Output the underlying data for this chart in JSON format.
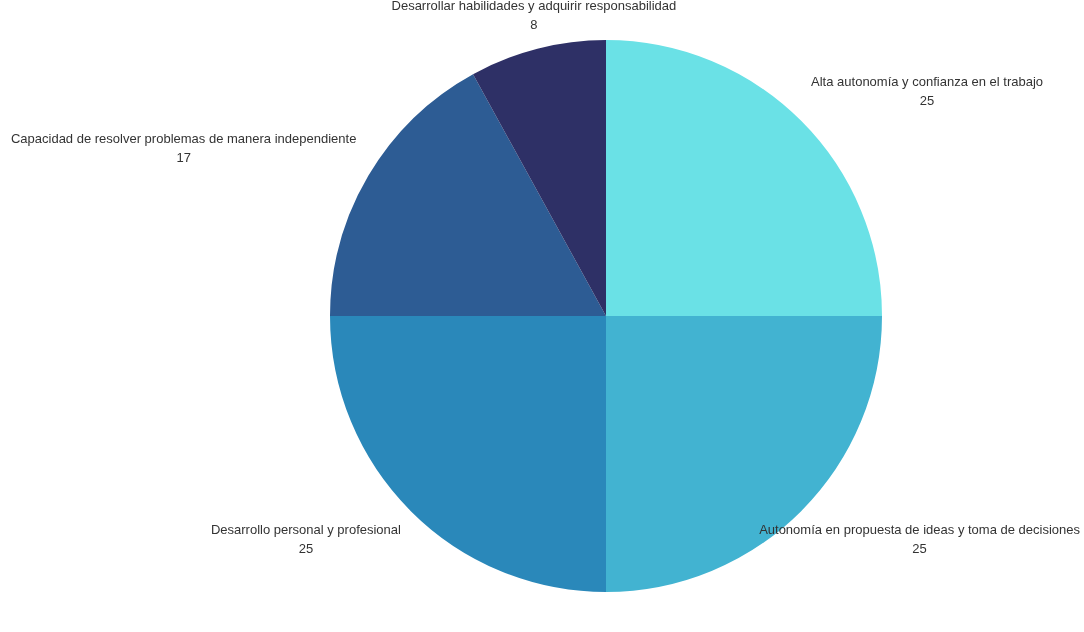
{
  "chart_data": {
    "type": "pie",
    "categories": [
      "Alta autonomía y confianza en el trabajo",
      "Autonomía en propuesta de ideas y toma de decisiones",
      "Desarrollo personal y profesional",
      "Capacidad de resolver problemas de manera independiente",
      "Desarrollar habilidades y adquirir responsabilidad"
    ],
    "values": [
      25,
      25,
      25,
      17,
      8
    ],
    "colors": [
      "#6ae1e6",
      "#42b3d1",
      "#2a88ba",
      "#2d5c94",
      "#2e3066"
    ],
    "data_labels": true
  }
}
